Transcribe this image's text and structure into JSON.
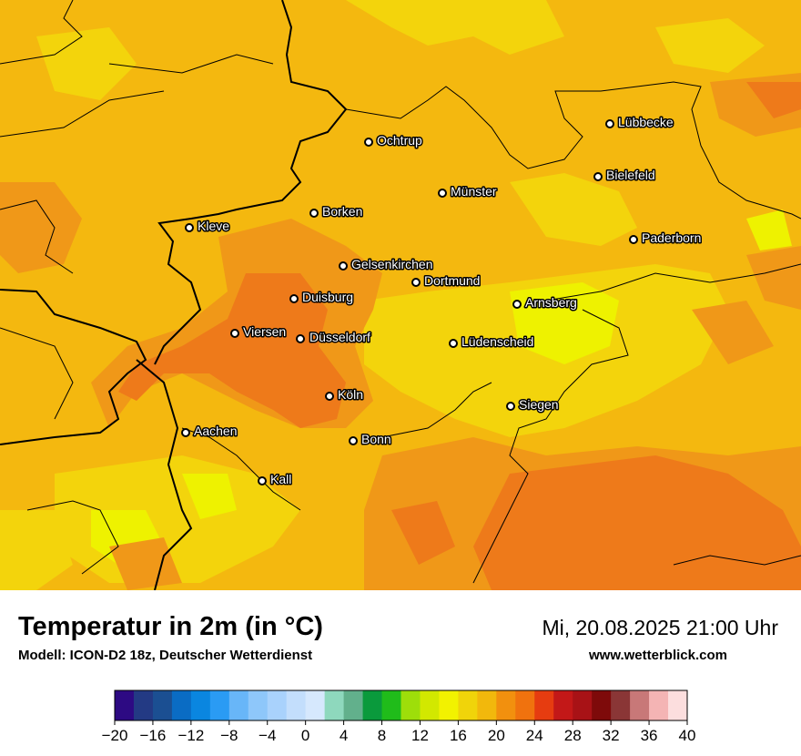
{
  "header": {
    "title": "Temperatur in 2m (in °C)",
    "model": "Modell: ICON-D2 18z, Deutscher Wetterdienst",
    "datetime": "Mi, 20.08.2025 21:00 Uhr",
    "website": "www.wetterblick.com"
  },
  "cities": [
    {
      "name": "Lübbecke"
    },
    {
      "name": "Ochtrup"
    },
    {
      "name": "Bielefeld"
    },
    {
      "name": "Münster"
    },
    {
      "name": "Borken"
    },
    {
      "name": "Kleve"
    },
    {
      "name": "Paderborn"
    },
    {
      "name": "Gelsenkirchen"
    },
    {
      "name": "Dortmund"
    },
    {
      "name": "Duisburg"
    },
    {
      "name": "Arnsberg"
    },
    {
      "name": "Viersen"
    },
    {
      "name": "Düsseldorf"
    },
    {
      "name": "Lüdenscheid"
    },
    {
      "name": "Köln"
    },
    {
      "name": "Siegen"
    },
    {
      "name": "Aachen"
    },
    {
      "name": "Bonn"
    },
    {
      "name": "Kall"
    }
  ],
  "colorbar": {
    "ticks": [
      "−20",
      "−16",
      "−12",
      "−8",
      "−4",
      "0",
      "4",
      "8",
      "12",
      "16",
      "20",
      "24",
      "28",
      "32",
      "36",
      "40"
    ],
    "colors": [
      "#2d0a83",
      "#233a84",
      "#1b4f92",
      "#0a6cc4",
      "#0a86e0",
      "#2a9bf4",
      "#68b6f8",
      "#8ec7fa",
      "#a9d2fc",
      "#c3defc",
      "#d6e8fd",
      "#8ed8bd",
      "#62b08c",
      "#0a9a3c",
      "#20bc1a",
      "#9ede0a",
      "#d2e800",
      "#f2f200",
      "#f0d40a",
      "#f2b80c",
      "#f2900e",
      "#f0720e",
      "#e63c10",
      "#c31818",
      "#a81216",
      "#7e0a0a",
      "#8a3636",
      "#c87878",
      "#f4b4b4",
      "#fcdede"
    ]
  },
  "map_colors": {
    "base": "#f4b80f",
    "warm": "#f09818",
    "hot": "#ee7a1a",
    "cool": "#f3d40c",
    "coolest": "#eef200"
  }
}
